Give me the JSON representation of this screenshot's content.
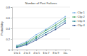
{
  "chart_data": {
    "type": "line",
    "x_label": "Number of Past Failures",
    "y_label": "Probability",
    "categories": [
      "0 to 1",
      "2 to 3",
      "4 to 5",
      "6 to 7",
      "8 to 9",
      "10+"
    ],
    "series": [
      {
        "name": "Clip 1",
        "color": "#7fb2e5",
        "values": [
          0.08,
          0.15,
          0.28,
          0.38,
          0.5,
          0.62
        ]
      },
      {
        "name": "Clip 2",
        "color": "#4aa564",
        "values": [
          0.06,
          0.13,
          0.24,
          0.36,
          0.46,
          0.58
        ]
      },
      {
        "name": "Clip 3",
        "color": "#2e8b99",
        "values": [
          0.05,
          0.11,
          0.21,
          0.32,
          0.42,
          0.54
        ]
      },
      {
        "name": "Clip 4",
        "color": "#2f4f8f",
        "values": [
          0.04,
          0.09,
          0.18,
          0.28,
          0.38,
          0.5
        ]
      }
    ],
    "ylim": [
      0,
      0.8
    ],
    "yticks": [
      0,
      0.2,
      0.4,
      0.6,
      0.8
    ],
    "grid": true,
    "marker": "circle",
    "legend": "right"
  }
}
